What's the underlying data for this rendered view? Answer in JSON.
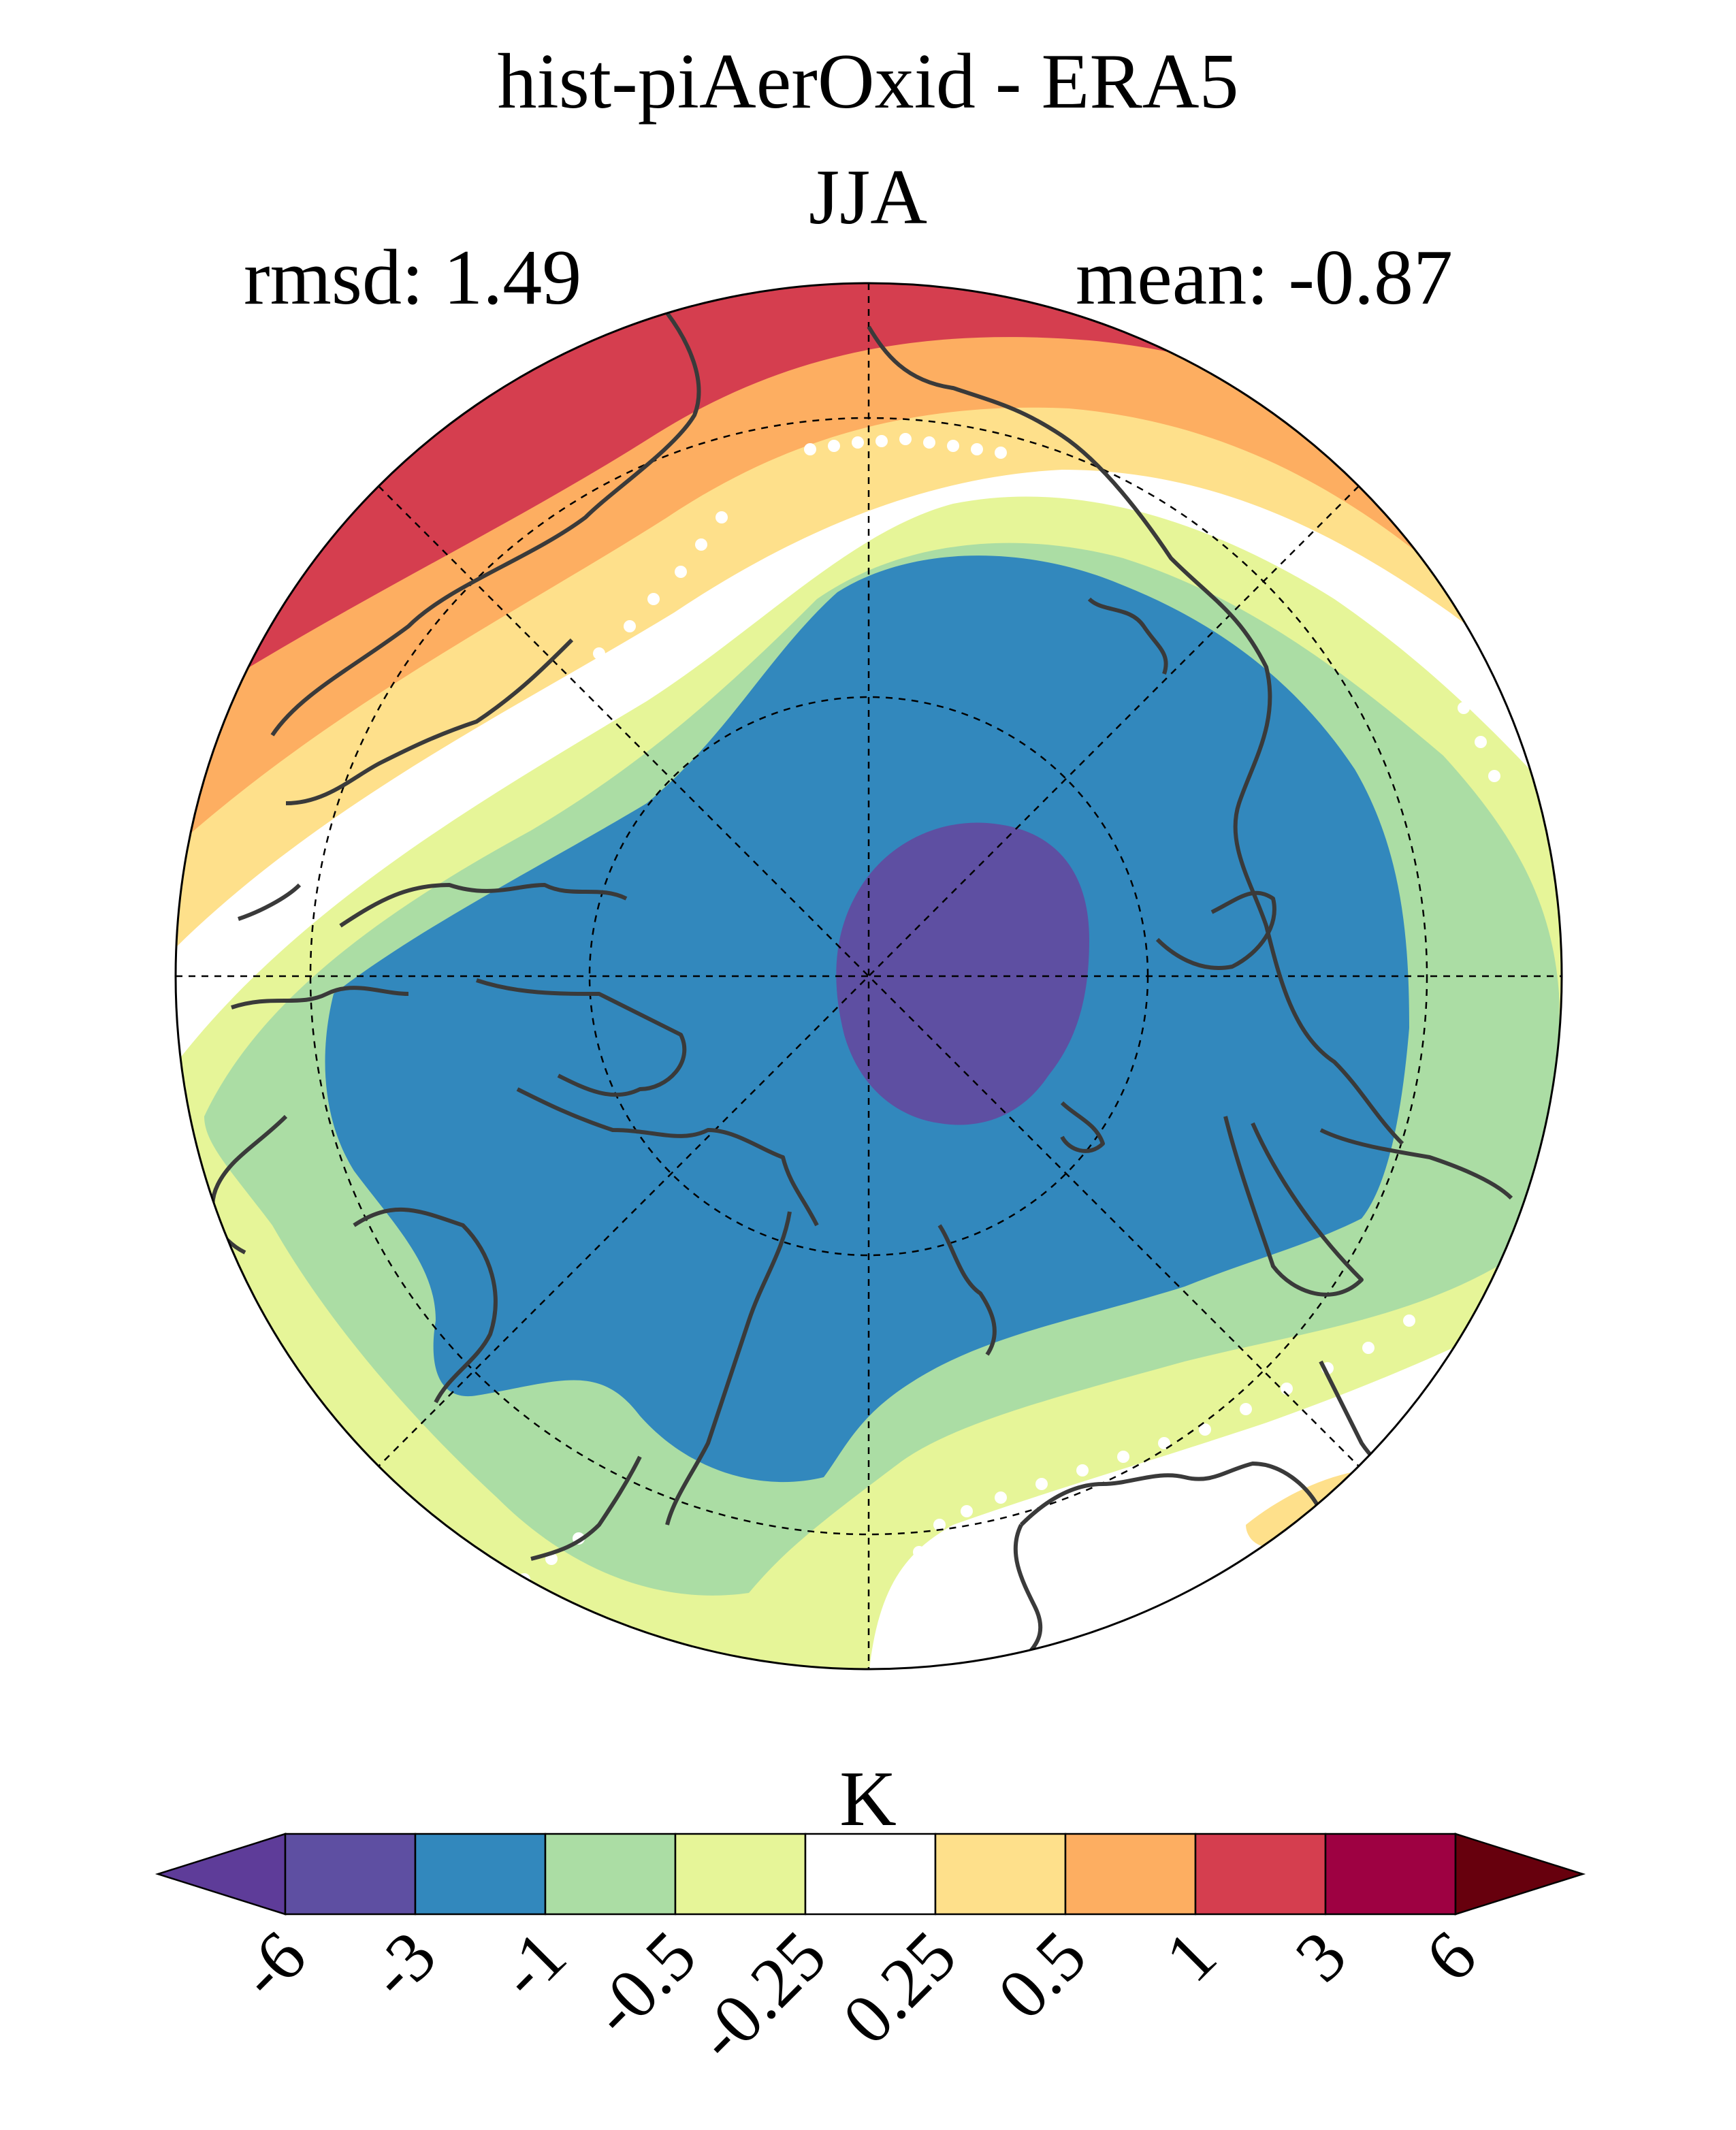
{
  "header": {
    "title": "hist-piAerOxid - ERA5",
    "season": "JJA",
    "rmsd_label": "rmsd: 1.49",
    "mean_label": "mean: -0.87"
  },
  "colorbar": {
    "unit": "K",
    "ticks": [
      "-6",
      "-3",
      "-1",
      "-0.5",
      "-0.25",
      "0.25",
      "0.5",
      "1",
      "3",
      "6"
    ],
    "colors": [
      "#5e3c99",
      "#5e4fa2",
      "#3288bd",
      "#abdda4",
      "#e6f598",
      "#ffffff",
      "#fee08b",
      "#fdae61",
      "#d53e4f",
      "#9e0142",
      "#67000d"
    ],
    "extend": "both"
  },
  "map": {
    "projection": "north polar stereographic",
    "region_colors": {
      "strong_cold": "#5e4fa2",
      "cold": "#3288bd",
      "cool": "#abdda4",
      "slight_cool": "#e6f598",
      "neutral": "#ffffff",
      "slight_warm": "#fee08b",
      "warm": "#fdae61",
      "strong_warm": "#d53e4f"
    },
    "coastline_color": "#3a3a3a",
    "stippling": "white dots mark non-significant differences"
  }
}
